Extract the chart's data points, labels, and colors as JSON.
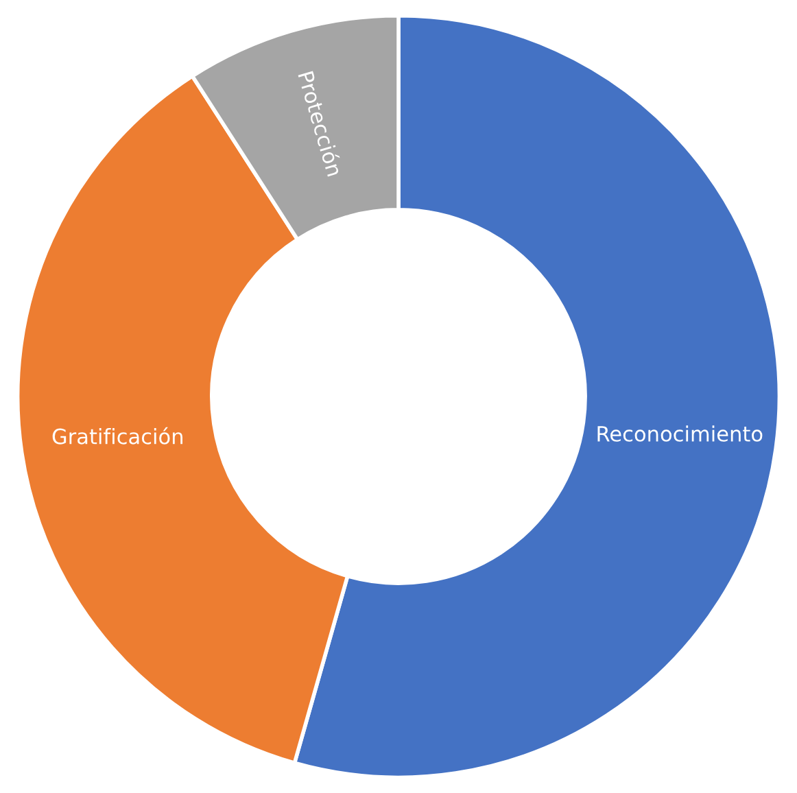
{
  "chart_data": {
    "type": "donut",
    "categories": [
      "Reconocimiento",
      "Gratificación",
      "Protección"
    ],
    "values": [
      54.4,
      36.5,
      9.1
    ],
    "colors": [
      "#4472c4",
      "#ed7d31",
      "#a5a5a5"
    ],
    "legend": false
  }
}
